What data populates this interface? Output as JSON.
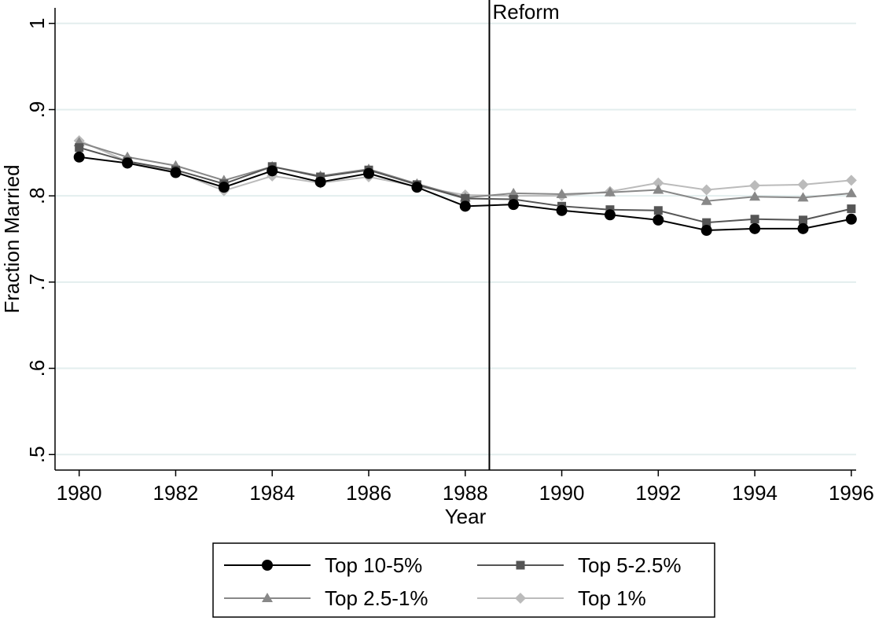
{
  "chart_data": {
    "type": "line",
    "x": [
      1980,
      1981,
      1982,
      1983,
      1984,
      1985,
      1986,
      1987,
      1988,
      1989,
      1990,
      1991,
      1992,
      1993,
      1994,
      1995,
      1996
    ],
    "series": [
      {
        "name": "Top 10-5%",
        "color": "#000000",
        "marker": "circle",
        "values": [
          0.845,
          0.838,
          0.827,
          0.81,
          0.829,
          0.816,
          0.826,
          0.81,
          0.788,
          0.79,
          0.783,
          0.778,
          0.772,
          0.76,
          0.762,
          0.762,
          0.773
        ]
      },
      {
        "name": "Top 5-2.5%",
        "color": "#555555",
        "marker": "square",
        "values": [
          0.856,
          0.84,
          0.83,
          0.814,
          0.834,
          0.822,
          0.83,
          0.813,
          0.797,
          0.796,
          0.788,
          0.784,
          0.783,
          0.769,
          0.773,
          0.772,
          0.785
        ]
      },
      {
        "name": "Top 2.5-1%",
        "color": "#888888",
        "marker": "triangle",
        "values": [
          0.862,
          0.845,
          0.835,
          0.818,
          0.834,
          0.823,
          0.831,
          0.814,
          0.798,
          0.803,
          0.802,
          0.804,
          0.807,
          0.794,
          0.799,
          0.798,
          0.803
        ]
      },
      {
        "name": "Top 1%",
        "color": "#bbbbbb",
        "marker": "diamond",
        "values": [
          0.864,
          0.84,
          0.828,
          0.806,
          0.823,
          0.815,
          0.822,
          0.811,
          0.801,
          0.8,
          0.8,
          0.805,
          0.815,
          0.807,
          0.812,
          0.813,
          0.818
        ]
      }
    ],
    "xlabel": "Year",
    "ylabel": "Fraction Married",
    "xlim": [
      1979.5,
      1996.1
    ],
    "xticks": [
      1980,
      1982,
      1984,
      1986,
      1988,
      1990,
      1992,
      1994,
      1996
    ],
    "ylim": [
      0.482,
      1.018
    ],
    "yticks": [
      {
        "value": 0.5,
        "label": ".5"
      },
      {
        "value": 0.6,
        "label": ".6"
      },
      {
        "value": 0.7,
        "label": ".7"
      },
      {
        "value": 0.8,
        "label": ".8"
      },
      {
        "value": 0.9,
        "label": ".9"
      },
      1
    ],
    "grid": true,
    "grid_color": "#e3eeee",
    "legend": "bottom",
    "annotations": [
      {
        "x": 1988.5,
        "label": "Reform"
      }
    ]
  }
}
